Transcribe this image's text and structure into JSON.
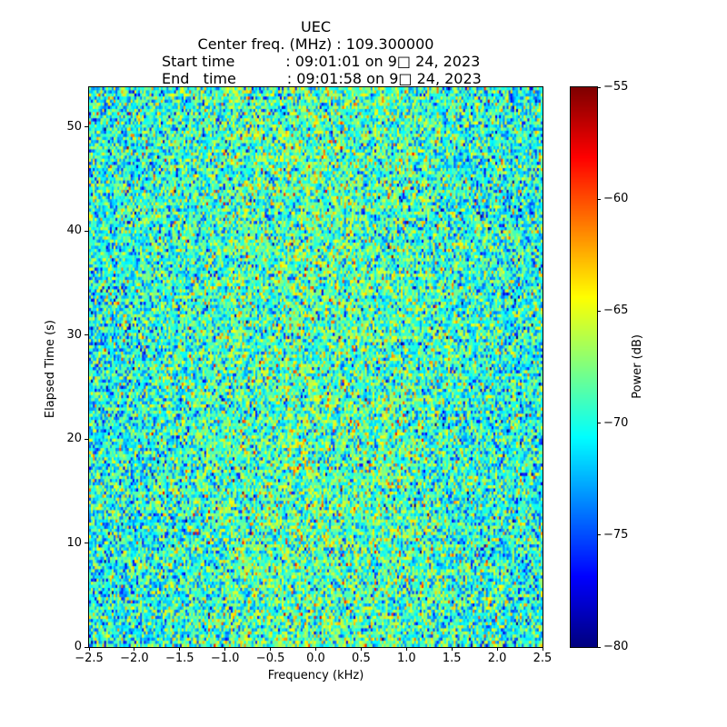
{
  "header": {
    "line1": "UEC",
    "line2": "Center freq. (MHz) : 109.300000",
    "line3": "Start time           : 09:01:01 on 9□ 24, 2023",
    "line4": "End   time           : 09:01:58 on 9□ 24, 2023"
  },
  "chart_data": {
    "type": "heatmap",
    "title": "UEC",
    "center_freq_mhz": "109.300000",
    "start_time": "09:01:01 on 9□ 24, 2023",
    "end_time": "09:01:58 on 9□ 24, 2023",
    "xlabel": "Frequency (kHz)",
    "ylabel": "Elapsed Time (s)",
    "colorbar_label": "Power (dB)",
    "colormap": "jet",
    "grid": false,
    "xlim": [
      -2.5,
      2.5
    ],
    "ylim": [
      0,
      53.8
    ],
    "clim": [
      -80,
      -55
    ],
    "x_ticks": [
      -2.5,
      -2.0,
      -1.5,
      -1.0,
      -0.5,
      0.0,
      0.5,
      1.0,
      1.5,
      2.0,
      2.5
    ],
    "x_tick_labels": [
      "−2.5",
      "−2.0",
      "−1.5",
      "−1.0",
      "−0.5",
      "0.0",
      "0.5",
      "1.0",
      "1.5",
      "2.0",
      "2.5"
    ],
    "y_ticks": [
      0,
      10,
      20,
      30,
      40,
      50
    ],
    "y_tick_labels": [
      "0",
      "10",
      "20",
      "30",
      "40",
      "50"
    ],
    "colorbar_ticks": [
      -55,
      -60,
      -65,
      -70,
      -75,
      -80
    ],
    "colorbar_tick_labels": [
      "−55",
      "−60",
      "−65",
      "−70",
      "−75",
      "−80"
    ],
    "noise": {
      "rows": 180,
      "cols": 240,
      "mean_db": -70.4,
      "sigma_db": 3.3,
      "center_boost_db": 1.8,
      "center_width_frac": 0.24,
      "hot_pixel_prob": 0.018,
      "seed": 1337
    }
  }
}
